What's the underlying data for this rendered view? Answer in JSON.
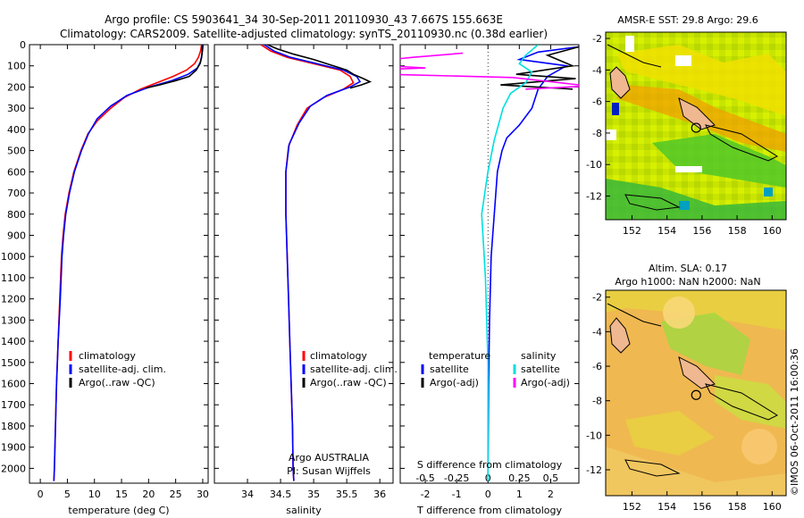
{
  "header": {
    "line1": "Argo profile: CS 5903641_34 30-Sep-2011 20110930_43 7.667S 155.663E",
    "line2": "Climatology: CARS2009. Satellite-adjusted climatology: synTS_20110930.nc (0.38d earlier)"
  },
  "watermark": "©IMOS 06-Oct-2011 16:00:36",
  "colors": {
    "climatology": "#ff0000",
    "satellite": "#0000ff",
    "argo": "#000000",
    "salinity_sat": "#00e0e0",
    "salinity_argo": "#ff00ff"
  },
  "chart_data": [
    {
      "type": "line",
      "id": "temperature",
      "xlabel": "temperature (deg C)",
      "xlim": [
        -2,
        31
      ],
      "xticks": [
        0,
        5,
        10,
        15,
        20,
        25,
        30
      ],
      "ylim": [
        0,
        2070
      ],
      "yticks": [
        0,
        100,
        200,
        300,
        400,
        500,
        600,
        700,
        800,
        900,
        1000,
        1100,
        1200,
        1300,
        1400,
        1500,
        1600,
        1700,
        1800,
        1900,
        2000
      ],
      "legend": [
        "climatology",
        "satellite-adj. clim.",
        "Argo(..raw -QC)"
      ],
      "series": [
        {
          "name": "climatology",
          "color": "#ff0000",
          "points": [
            [
              29.8,
              0
            ],
            [
              29.6,
              30
            ],
            [
              29.2,
              60
            ],
            [
              28.5,
              90
            ],
            [
              27.0,
              120
            ],
            [
              24.5,
              150
            ],
            [
              21.5,
              180
            ],
            [
              18.5,
              210
            ],
            [
              15.5,
              250
            ],
            [
              13.0,
              300
            ],
            [
              10.5,
              360
            ],
            [
              8.8,
              420
            ],
            [
              7.5,
              500
            ],
            [
              6.2,
              600
            ],
            [
              5.3,
              700
            ],
            [
              4.6,
              800
            ],
            [
              4.2,
              900
            ],
            [
              3.9,
              1000
            ],
            [
              3.6,
              1200
            ],
            [
              3.3,
              1400
            ],
            [
              3.0,
              1600
            ],
            [
              2.8,
              1800
            ],
            [
              2.6,
              2000
            ],
            [
              2.5,
              2060
            ]
          ]
        },
        {
          "name": "satellite-adj. clim.",
          "color": "#0000ff",
          "points": [
            [
              30.1,
              0
            ],
            [
              29.9,
              40
            ],
            [
              29.6,
              80
            ],
            [
              29.0,
              110
            ],
            [
              27.3,
              140
            ],
            [
              24.3,
              170
            ],
            [
              20.2,
              200
            ],
            [
              16.0,
              240
            ],
            [
              13.0,
              290
            ],
            [
              10.5,
              350
            ],
            [
              8.9,
              420
            ],
            [
              7.6,
              500
            ],
            [
              6.3,
              600
            ],
            [
              5.4,
              700
            ],
            [
              4.7,
              800
            ],
            [
              4.3,
              900
            ],
            [
              4.0,
              1000
            ],
            [
              3.7,
              1200
            ],
            [
              3.3,
              1400
            ],
            [
              3.0,
              1600
            ],
            [
              2.8,
              1800
            ],
            [
              2.6,
              2000
            ],
            [
              2.5,
              2060
            ]
          ]
        },
        {
          "name": "Argo(..raw -QC)",
          "color": "#000000",
          "points": [
            [
              29.9,
              0
            ],
            [
              29.9,
              30
            ],
            [
              29.8,
              60
            ],
            [
              29.5,
              90
            ],
            [
              28.8,
              120
            ],
            [
              27.5,
              150
            ],
            [
              25.0,
              170
            ],
            [
              22.0,
              190
            ],
            [
              19.5,
              205
            ]
          ]
        }
      ]
    },
    {
      "type": "line",
      "id": "salinity",
      "xlabel": "salinity",
      "xlim": [
        33.5,
        36.2
      ],
      "xticks": [
        34,
        34.5,
        35,
        35.5,
        36
      ],
      "ylim": [
        0,
        2070
      ],
      "legend": [
        "climatology",
        "satellite-adj. clim.",
        "Argo(..raw -QC)"
      ],
      "annotation": [
        "Argo AUSTRALIA",
        "PI: Susan Wijffels"
      ],
      "series": [
        {
          "name": "climatology",
          "color": "#ff0000",
          "points": [
            [
              34.2,
              0
            ],
            [
              34.35,
              30
            ],
            [
              34.6,
              60
            ],
            [
              35.0,
              90
            ],
            [
              35.4,
              120
            ],
            [
              35.55,
              150
            ],
            [
              35.6,
              180
            ],
            [
              35.45,
              210
            ],
            [
              35.15,
              250
            ],
            [
              34.9,
              300
            ],
            [
              34.75,
              380
            ],
            [
              34.62,
              480
            ],
            [
              34.58,
              600
            ],
            [
              34.58,
              800
            ],
            [
              34.6,
              1000
            ],
            [
              34.62,
              1200
            ],
            [
              34.64,
              1400
            ],
            [
              34.66,
              1600
            ],
            [
              34.68,
              1800
            ],
            [
              34.69,
              2000
            ],
            [
              34.7,
              2060
            ]
          ]
        },
        {
          "name": "satellite-adj. clim.",
          "color": "#0000ff",
          "points": [
            [
              34.25,
              0
            ],
            [
              34.4,
              30
            ],
            [
              34.65,
              60
            ],
            [
              35.05,
              90
            ],
            [
              35.45,
              120
            ],
            [
              35.65,
              150
            ],
            [
              35.7,
              175
            ],
            [
              35.55,
              200
            ],
            [
              35.2,
              240
            ],
            [
              34.95,
              290
            ],
            [
              34.78,
              370
            ],
            [
              34.63,
              470
            ],
            [
              34.58,
              600
            ],
            [
              34.58,
              800
            ],
            [
              34.6,
              1000
            ],
            [
              34.62,
              1200
            ],
            [
              34.64,
              1400
            ],
            [
              34.66,
              1600
            ],
            [
              34.68,
              1800
            ],
            [
              34.69,
              2000
            ],
            [
              34.7,
              2060
            ]
          ]
        },
        {
          "name": "Argo(..raw -QC)",
          "color": "#000000",
          "points": [
            [
              34.3,
              0
            ],
            [
              34.45,
              20
            ],
            [
              34.7,
              45
            ],
            [
              35.0,
              70
            ],
            [
              35.3,
              100
            ],
            [
              35.5,
              120
            ],
            [
              35.6,
              140
            ],
            [
              35.75,
              160
            ],
            [
              35.85,
              175
            ],
            [
              35.72,
              190
            ],
            [
              35.55,
              205
            ]
          ]
        }
      ]
    },
    {
      "type": "line",
      "id": "difference",
      "xlabel": "T difference from climatology",
      "xlabel_top": "S difference from climatology",
      "xlim": [
        -2.8,
        2.9
      ],
      "xticks": [
        -2,
        -1,
        0,
        1,
        2
      ],
      "sticks_labels": [
        "-0.5",
        "-0.25",
        "0",
        "0.25",
        "0.5"
      ],
      "ylim": [
        0,
        2070
      ],
      "legend_titles": [
        "temperature",
        "salinity"
      ],
      "legend": [
        "satellite",
        "Argo(-adj)",
        "satellite",
        "Argo(-adj)"
      ],
      "series": [
        {
          "name": "T satellite",
          "color": "#0000ff",
          "points": [
            [
              2.9,
              10
            ],
            [
              1.6,
              35
            ],
            [
              1.0,
              70
            ],
            [
              2.5,
              100
            ],
            [
              1.9,
              150
            ],
            [
              1.6,
              210
            ],
            [
              1.4,
              300
            ],
            [
              1.0,
              380
            ],
            [
              0.6,
              440
            ],
            [
              0.45,
              500
            ],
            [
              0.3,
              600
            ],
            [
              0.2,
              800
            ],
            [
              0.1,
              1000
            ],
            [
              0.05,
              1300
            ],
            [
              0.02,
              1600
            ],
            [
              0.0,
              2060
            ]
          ]
        },
        {
          "name": "T Argo(-adj)",
          "color": "#000000",
          "points": [
            [
              2.9,
              10
            ],
            [
              1.9,
              50
            ],
            [
              2.7,
              100
            ],
            [
              0.9,
              140
            ],
            [
              2.8,
              160
            ],
            [
              0.4,
              190
            ],
            [
              2.7,
              210
            ]
          ]
        },
        {
          "name": "S satellite",
          "color": "#00e0e0",
          "points": [
            [
              0.4,
              0
            ],
            [
              0.3,
              50
            ],
            [
              0.25,
              90
            ],
            [
              0.35,
              130
            ],
            [
              0.3,
              180
            ],
            [
              0.18,
              230
            ],
            [
              0.12,
              300
            ],
            [
              0.05,
              450
            ],
            [
              0.0,
              600
            ],
            [
              -0.05,
              800
            ],
            [
              -0.02,
              1100
            ],
            [
              0.0,
              1500
            ],
            [
              0.0,
              2060
            ]
          ]
        },
        {
          "name": "S Argo(-adj)",
          "color": "#ff00ff",
          "points": [
            [
              -0.2,
              40
            ],
            [
              -0.6,
              60
            ],
            [
              -1.1,
              90
            ],
            [
              -0.5,
              110
            ],
            [
              -1.4,
              130
            ],
            [
              -0.8,
              140
            ],
            [
              0.2,
              155
            ],
            [
              0.5,
              175
            ],
            [
              0.8,
              195
            ],
            [
              0.3,
              210
            ]
          ]
        }
      ]
    },
    {
      "type": "heatmap",
      "id": "sst_map",
      "title": "AMSR-E SST: 29.8 Argo: 29.6",
      "xlim": [
        150.5,
        160.8
      ],
      "ylim": [
        -13.5,
        -1.6
      ],
      "xticks": [
        152,
        154,
        156,
        158,
        160
      ],
      "yticks": [
        -2,
        -4,
        -6,
        -8,
        -10,
        -12
      ],
      "argo_position": [
        155.663,
        -7.667
      ]
    },
    {
      "type": "heatmap",
      "id": "sla_map",
      "title": "Altim. SLA: 0.17",
      "subtitle": "Argo h1000: NaN h2000: NaN",
      "xlim": [
        150.5,
        160.8
      ],
      "ylim": [
        -13.5,
        -1.6
      ],
      "xticks": [
        152,
        154,
        156,
        158,
        160
      ],
      "yticks": [
        -2,
        -4,
        -6,
        -8,
        -10,
        -12
      ],
      "argo_position": [
        155.663,
        -7.667
      ]
    }
  ]
}
